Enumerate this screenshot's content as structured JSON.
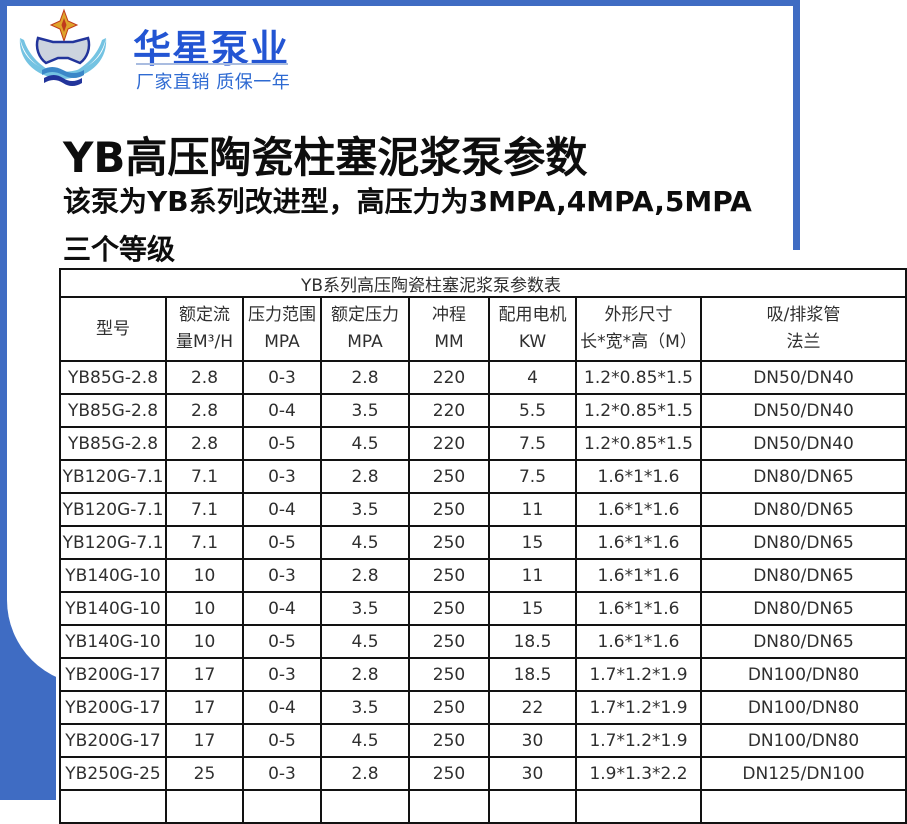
{
  "brand": {
    "name": "华星泵业",
    "tagline": "厂家直销 质保一年"
  },
  "headline": {
    "title": "YB高压陶瓷柱塞泥浆泵参数",
    "subtitle": "该泵为YB系列改进型，高压力为3MPA,4MPA,5MPA",
    "subtitle2": "三个等级"
  },
  "table": {
    "caption": "YB系列高压陶瓷柱塞泥浆泵参数表",
    "columns": [
      {
        "line1": "型号",
        "line2": ""
      },
      {
        "line1": "额定流",
        "line2": "量M³/H"
      },
      {
        "line1": "压力范围",
        "line2": "MPA"
      },
      {
        "line1": "额定压力",
        "line2": "MPA"
      },
      {
        "line1": "冲程",
        "line2": "MM"
      },
      {
        "line1": "配用电机",
        "line2": "KW"
      },
      {
        "line1": "外形尺寸",
        "line2": "长*宽*高（M）"
      },
      {
        "line1": "吸/排浆管",
        "line2": "法兰"
      }
    ],
    "rows": [
      [
        "YB85G-2.8",
        "2.8",
        "0-3",
        "2.8",
        "220",
        "4",
        "1.2*0.85*1.5",
        "DN50/DN40"
      ],
      [
        "YB85G-2.8",
        "2.8",
        "0-4",
        "3.5",
        "220",
        "5.5",
        "1.2*0.85*1.5",
        "DN50/DN40"
      ],
      [
        "YB85G-2.8",
        "2.8",
        "0-5",
        "4.5",
        "220",
        "7.5",
        "1.2*0.85*1.5",
        "DN50/DN40"
      ],
      [
        "YB120G-7.1",
        "7.1",
        "0-3",
        "2.8",
        "250",
        "7.5",
        "1.6*1*1.6",
        "DN80/DN65"
      ],
      [
        "YB120G-7.1",
        "7.1",
        "0-4",
        "3.5",
        "250",
        "11",
        "1.6*1*1.6",
        "DN80/DN65"
      ],
      [
        "YB120G-7.1",
        "7.1",
        "0-5",
        "4.5",
        "250",
        "15",
        "1.6*1*1.6",
        "DN80/DN65"
      ],
      [
        "YB140G-10",
        "10",
        "0-3",
        "2.8",
        "250",
        "11",
        "1.6*1*1.6",
        "DN80/DN65"
      ],
      [
        "YB140G-10",
        "10",
        "0-4",
        "3.5",
        "250",
        "15",
        "1.6*1*1.6",
        "DN80/DN65"
      ],
      [
        "YB140G-10",
        "10",
        "0-5",
        "4.5",
        "250",
        "18.5",
        "1.6*1*1.6",
        "DN80/DN65"
      ],
      [
        "YB200G-17",
        "17",
        "0-3",
        "2.8",
        "250",
        "18.5",
        "1.7*1.2*1.9",
        "DN100/DN80"
      ],
      [
        "YB200G-17",
        "17",
        "0-4",
        "3.5",
        "250",
        "22",
        "1.7*1.2*1.9",
        "DN100/DN80"
      ],
      [
        "YB200G-17",
        "17",
        "0-5",
        "4.5",
        "250",
        "30",
        "1.7*1.2*1.9",
        "DN100/DN80"
      ],
      [
        "YB250G-25",
        "25",
        "0-3",
        "2.8",
        "250",
        "30",
        "1.9*1.3*2.2",
        "DN125/DN100"
      ],
      [
        "",
        "",
        "",
        "",
        "",
        "",
        "",
        ""
      ]
    ]
  },
  "colors": {
    "frame_blue": "#3f6cc3",
    "brand_blue": "#2355d3",
    "tagline_blue": "#2e6ad2",
    "divider_blue": "#a9bce0",
    "heading_black": "#0d0d0d",
    "table_border": "#121212",
    "table_text": "#2f2f2f",
    "logo_gold": "#dfa32b",
    "logo_red": "#c03a1c",
    "logo_silver": "#ccd3de",
    "logo_navy": "#22349b",
    "logo_lightblue": "#74c3e2",
    "logo_wave_blue": "#3b87c8"
  }
}
